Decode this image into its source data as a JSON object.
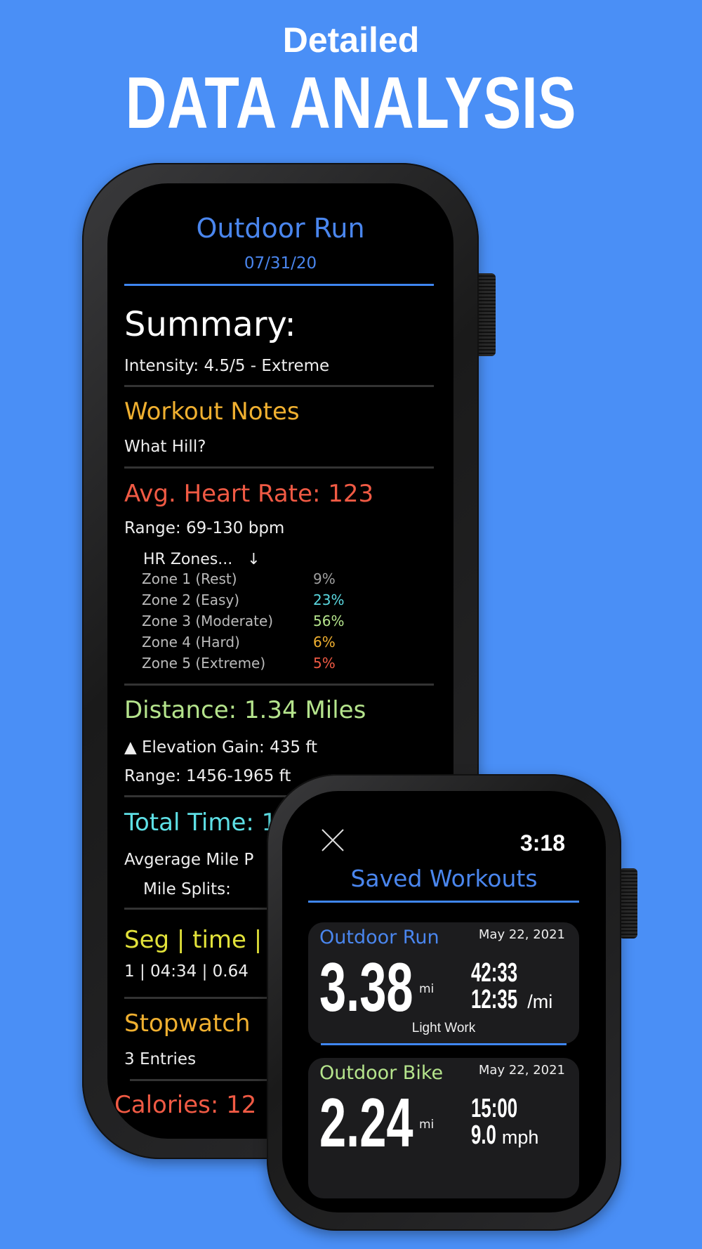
{
  "header": {
    "subtitle": "Detailed",
    "title": "DATA ANALYSIS"
  },
  "detail": {
    "title": "Outdoor Run",
    "date": "07/31/20",
    "summary_label": "Summary:",
    "intensity": "Intensity: 4.5/5 - Extreme",
    "notes_label": "Workout Notes",
    "notes": "What Hill?",
    "hr_label": "Avg. Heart Rate: 123",
    "hr_range": "Range: 69-130 bpm",
    "hr_zones_label": "HR Zones...",
    "hr_zones_arrow": "↓",
    "zones": [
      {
        "name": "Zone 1 (Rest)",
        "pct": "9%",
        "color": "#a0a0a0"
      },
      {
        "name": "Zone 2 (Easy)",
        "pct": "23%",
        "color": "#5ad8e0"
      },
      {
        "name": "Zone 3 (Moderate)",
        "pct": "56%",
        "color": "#b5e48c"
      },
      {
        "name": "Zone 4 (Hard)",
        "pct": "6%",
        "color": "#f0b030"
      },
      {
        "name": "Zone 5 (Extreme)",
        "pct": "5%",
        "color": "#f05a44"
      }
    ],
    "distance_label": "Distance: 1.34 Miles",
    "elevation_icon": "▲",
    "elevation": "Elevation Gain: 435 ft",
    "elevation_range": "Range: 1456-1965 ft",
    "time_label": "Total Time: 1",
    "avg_pace": "Avgerage Mile P",
    "mile_splits": "Mile Splits:",
    "seg_header": "Seg | time |",
    "seg_row": "1 | 04:34 | 0.64",
    "stopwatch_label": "Stopwatch",
    "stopwatch_entries": "3 Entries",
    "calories_label": "Calories: 12"
  },
  "saved": {
    "clock": "3:18",
    "title": "Saved Workouts",
    "close_icon": "close-icon",
    "workouts": [
      {
        "type": "Outdoor Run",
        "date": "May 22, 2021",
        "distance": "3.38",
        "unit": "mi",
        "time": "42:33",
        "pace": "12:35",
        "pace_unit": "/mi",
        "note": "Light Work",
        "color": "#4a86ee"
      },
      {
        "type": "Outdoor Bike",
        "date": "May 22, 2021",
        "distance": "2.24",
        "unit": "mi",
        "time": "15:00",
        "pace": "9.0",
        "pace_unit": "mph",
        "color": "#b5e48c"
      }
    ]
  },
  "colors": {
    "background": "#4a8ff6",
    "blue": "#3f86f0",
    "orange": "#f0b030",
    "red": "#f05a44",
    "green": "#b5e48c",
    "cyan": "#5ee0e6",
    "yellow": "#e2e23a"
  }
}
